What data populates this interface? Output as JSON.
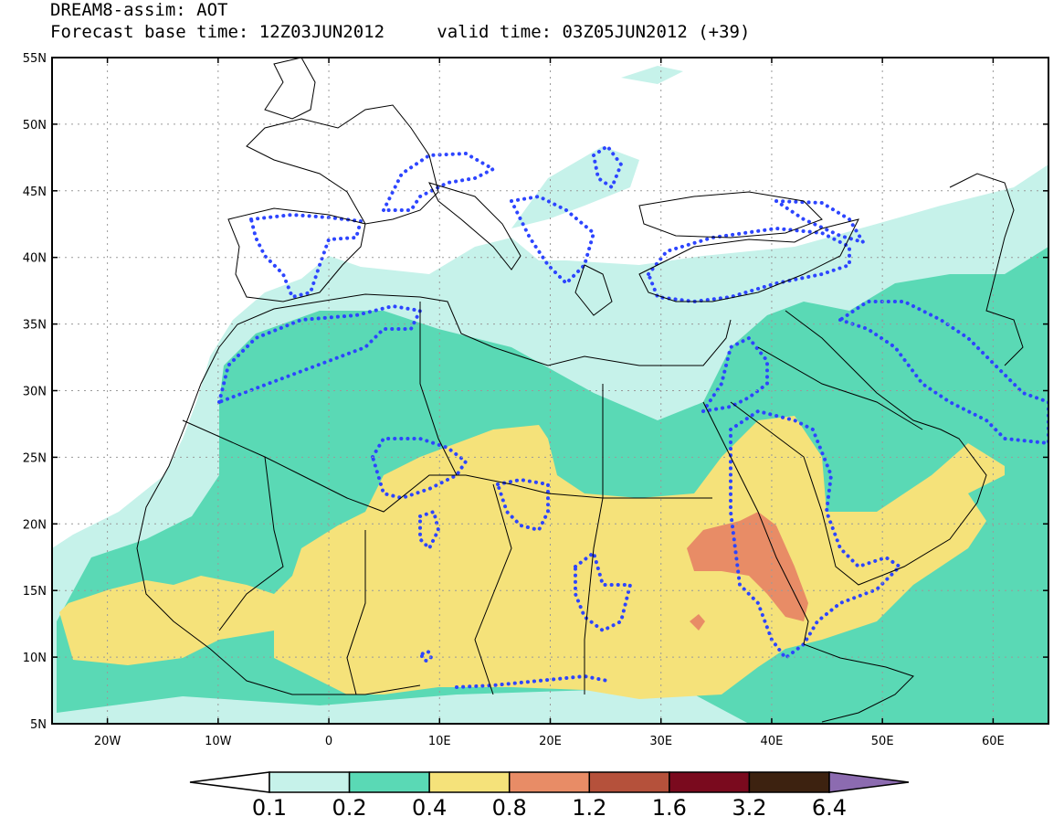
{
  "title": {
    "line1": "DREAM8-assim: AOT",
    "base_label": "Forecast base time: 12Z03JUN2012",
    "valid_label": "valid time: 03Z05JUN2012 (+39)"
  },
  "map": {
    "lon_range": [
      -25,
      65
    ],
    "lat_range": [
      5,
      55
    ],
    "grid": true,
    "lat_ticks": [
      {
        "value": 55,
        "label": "55N"
      },
      {
        "value": 50,
        "label": "50N"
      },
      {
        "value": 45,
        "label": "45N"
      },
      {
        "value": 40,
        "label": "40N"
      },
      {
        "value": 35,
        "label": "35N"
      },
      {
        "value": 30,
        "label": "30N"
      },
      {
        "value": 25,
        "label": "25N"
      },
      {
        "value": 20,
        "label": "20N"
      },
      {
        "value": 15,
        "label": "15N"
      },
      {
        "value": 10,
        "label": "10N"
      },
      {
        "value": 5,
        "label": "5N"
      }
    ],
    "lon_ticks": [
      {
        "value": -20,
        "label": "20W"
      },
      {
        "value": -10,
        "label": "10W"
      },
      {
        "value": 0,
        "label": "0"
      },
      {
        "value": 10,
        "label": "10E"
      },
      {
        "value": 20,
        "label": "20E"
      },
      {
        "value": 30,
        "label": "30E"
      },
      {
        "value": 40,
        "label": "40E"
      },
      {
        "value": 50,
        "label": "50E"
      },
      {
        "value": 60,
        "label": "60E"
      }
    ]
  },
  "colorbar": {
    "colors": [
      "#ffffff",
      "#c6f2ea",
      "#5ad9b5",
      "#f5e27a",
      "#e88c66",
      "#b5513b",
      "#7a0a1e",
      "#3d2210",
      "#8c6bb0"
    ],
    "labels": [
      "0.1",
      "0.2",
      "0.4",
      "0.8",
      "1.2",
      "1.6",
      "3.2",
      "6.4"
    ]
  },
  "contour_color": "#2d45ff"
}
